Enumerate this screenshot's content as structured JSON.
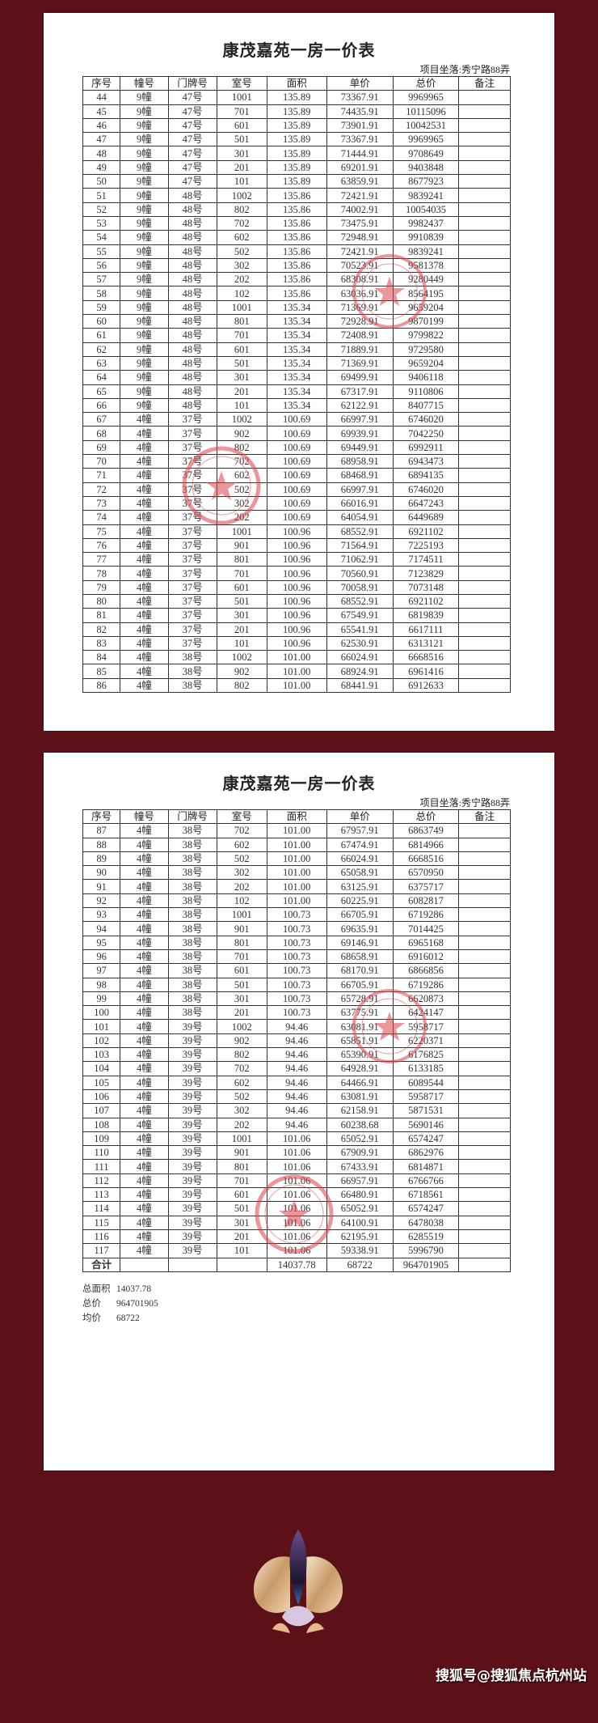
{
  "document": {
    "title": "康茂嘉苑一房一价表",
    "location": "项目坐落:秀宁路88弄",
    "columns": [
      "序号",
      "幢号",
      "门牌号",
      "室号",
      "面积",
      "单价",
      "总价",
      "备注"
    ],
    "page1_rows": [
      [
        "44",
        "9幢",
        "47号",
        "1001",
        "135.89",
        "73367.91",
        "9969965",
        ""
      ],
      [
        "45",
        "9幢",
        "47号",
        "701",
        "135.89",
        "74435.91",
        "10115096",
        ""
      ],
      [
        "46",
        "9幢",
        "47号",
        "601",
        "135.89",
        "73901.91",
        "10042531",
        ""
      ],
      [
        "47",
        "9幢",
        "47号",
        "501",
        "135.89",
        "73367.91",
        "9969965",
        ""
      ],
      [
        "48",
        "9幢",
        "47号",
        "301",
        "135.89",
        "71444.91",
        "9708649",
        ""
      ],
      [
        "49",
        "9幢",
        "47号",
        "201",
        "135.89",
        "69201.91",
        "9403848",
        ""
      ],
      [
        "50",
        "9幢",
        "47号",
        "101",
        "135.89",
        "63859.91",
        "8677923",
        ""
      ],
      [
        "51",
        "9幢",
        "48号",
        "1002",
        "135.86",
        "72421.91",
        "9839241",
        ""
      ],
      [
        "52",
        "9幢",
        "48号",
        "802",
        "135.86",
        "74002.91",
        "10054035",
        ""
      ],
      [
        "53",
        "9幢",
        "48号",
        "702",
        "135.86",
        "73475.91",
        "9982437",
        ""
      ],
      [
        "54",
        "9幢",
        "48号",
        "602",
        "135.86",
        "72948.91",
        "9910839",
        ""
      ],
      [
        "55",
        "9幢",
        "48号",
        "502",
        "135.86",
        "72421.91",
        "9839241",
        ""
      ],
      [
        "56",
        "9幢",
        "48号",
        "302",
        "135.86",
        "70523.91",
        "9581378",
        ""
      ],
      [
        "57",
        "9幢",
        "48号",
        "202",
        "135.86",
        "68308.91",
        "9280449",
        ""
      ],
      [
        "58",
        "9幢",
        "48号",
        "102",
        "135.86",
        "63036.91",
        "8564195",
        ""
      ],
      [
        "59",
        "9幢",
        "48号",
        "1001",
        "135.34",
        "71369.91",
        "9659204",
        ""
      ],
      [
        "60",
        "9幢",
        "48号",
        "801",
        "135.34",
        "72928.91",
        "9870199",
        ""
      ],
      [
        "61",
        "9幢",
        "48号",
        "701",
        "135.34",
        "72408.91",
        "9799822",
        ""
      ],
      [
        "62",
        "9幢",
        "48号",
        "601",
        "135.34",
        "71889.91",
        "9729580",
        ""
      ],
      [
        "63",
        "9幢",
        "48号",
        "501",
        "135.34",
        "71369.91",
        "9659204",
        ""
      ],
      [
        "64",
        "9幢",
        "48号",
        "301",
        "135.34",
        "69499.91",
        "9406118",
        ""
      ],
      [
        "65",
        "9幢",
        "48号",
        "201",
        "135.34",
        "67317.91",
        "9110806",
        ""
      ],
      [
        "66",
        "9幢",
        "48号",
        "101",
        "135.34",
        "62122.91",
        "8407715",
        ""
      ],
      [
        "67",
        "4幢",
        "37号",
        "1002",
        "100.69",
        "66997.91",
        "6746020",
        ""
      ],
      [
        "68",
        "4幢",
        "37号",
        "902",
        "100.69",
        "69939.91",
        "7042250",
        ""
      ],
      [
        "69",
        "4幢",
        "37号",
        "802",
        "100.69",
        "69449.91",
        "6992911",
        ""
      ],
      [
        "70",
        "4幢",
        "37号",
        "702",
        "100.69",
        "68958.91",
        "6943473",
        ""
      ],
      [
        "71",
        "4幢",
        "37号",
        "602",
        "100.69",
        "68468.91",
        "6894135",
        ""
      ],
      [
        "72",
        "4幢",
        "37号",
        "502",
        "100.69",
        "66997.91",
        "6746020",
        ""
      ],
      [
        "73",
        "4幢",
        "37号",
        "302",
        "100.69",
        "66016.91",
        "6647243",
        ""
      ],
      [
        "74",
        "4幢",
        "37号",
        "202",
        "100.69",
        "64054.91",
        "6449689",
        ""
      ],
      [
        "75",
        "4幢",
        "37号",
        "1001",
        "100.96",
        "68552.91",
        "6921102",
        ""
      ],
      [
        "76",
        "4幢",
        "37号",
        "901",
        "100.96",
        "71564.91",
        "7225193",
        ""
      ],
      [
        "77",
        "4幢",
        "37号",
        "801",
        "100.96",
        "71062.91",
        "7174511",
        ""
      ],
      [
        "78",
        "4幢",
        "37号",
        "701",
        "100.96",
        "70560.91",
        "7123829",
        ""
      ],
      [
        "79",
        "4幢",
        "37号",
        "601",
        "100.96",
        "70058.91",
        "7073148",
        ""
      ],
      [
        "80",
        "4幢",
        "37号",
        "501",
        "100.96",
        "68552.91",
        "6921102",
        ""
      ],
      [
        "81",
        "4幢",
        "37号",
        "301",
        "100.96",
        "67549.91",
        "6819839",
        ""
      ],
      [
        "82",
        "4幢",
        "37号",
        "201",
        "100.96",
        "65541.91",
        "6617111",
        ""
      ],
      [
        "83",
        "4幢",
        "37号",
        "101",
        "100.96",
        "62530.91",
        "6313121",
        ""
      ],
      [
        "84",
        "4幢",
        "38号",
        "1002",
        "101.00",
        "66024.91",
        "6668516",
        ""
      ],
      [
        "85",
        "4幢",
        "38号",
        "902",
        "101.00",
        "68924.91",
        "6961416",
        ""
      ],
      [
        "86",
        "4幢",
        "38号",
        "802",
        "101.00",
        "68441.91",
        "6912633",
        ""
      ]
    ],
    "page2_rows": [
      [
        "87",
        "4幢",
        "38号",
        "702",
        "101.00",
        "67957.91",
        "6863749",
        ""
      ],
      [
        "88",
        "4幢",
        "38号",
        "602",
        "101.00",
        "67474.91",
        "6814966",
        ""
      ],
      [
        "89",
        "4幢",
        "38号",
        "502",
        "101.00",
        "66024.91",
        "6668516",
        ""
      ],
      [
        "90",
        "4幢",
        "38号",
        "302",
        "101.00",
        "65058.91",
        "6570950",
        ""
      ],
      [
        "91",
        "4幢",
        "38号",
        "202",
        "101.00",
        "63125.91",
        "6375717",
        ""
      ],
      [
        "92",
        "4幢",
        "38号",
        "102",
        "101.00",
        "60225.91",
        "6082817",
        ""
      ],
      [
        "93",
        "4幢",
        "38号",
        "1001",
        "100.73",
        "66705.91",
        "6719286",
        ""
      ],
      [
        "94",
        "4幢",
        "38号",
        "901",
        "100.73",
        "69635.91",
        "7014425",
        ""
      ],
      [
        "95",
        "4幢",
        "38号",
        "801",
        "100.73",
        "69146.91",
        "6965168",
        ""
      ],
      [
        "96",
        "4幢",
        "38号",
        "701",
        "100.73",
        "68658.91",
        "6916012",
        ""
      ],
      [
        "97",
        "4幢",
        "38号",
        "601",
        "100.73",
        "68170.91",
        "6866856",
        ""
      ],
      [
        "98",
        "4幢",
        "38号",
        "501",
        "100.73",
        "66705.91",
        "6719286",
        ""
      ],
      [
        "99",
        "4幢",
        "38号",
        "301",
        "100.73",
        "65728.91",
        "6620873",
        ""
      ],
      [
        "100",
        "4幢",
        "38号",
        "201",
        "100.73",
        "63775.91",
        "6424147",
        ""
      ],
      [
        "101",
        "4幢",
        "39号",
        "1002",
        "94.46",
        "63081.91",
        "5958717",
        ""
      ],
      [
        "102",
        "4幢",
        "39号",
        "902",
        "94.46",
        "65851.91",
        "6220371",
        ""
      ],
      [
        "103",
        "4幢",
        "39号",
        "802",
        "94.46",
        "65390.91",
        "6176825",
        ""
      ],
      [
        "104",
        "4幢",
        "39号",
        "702",
        "94.46",
        "64928.91",
        "6133185",
        ""
      ],
      [
        "105",
        "4幢",
        "39号",
        "602",
        "94.46",
        "64466.91",
        "6089544",
        ""
      ],
      [
        "106",
        "4幢",
        "39号",
        "502",
        "94.46",
        "63081.91",
        "5958717",
        ""
      ],
      [
        "107",
        "4幢",
        "39号",
        "302",
        "94.46",
        "62158.91",
        "5871531",
        ""
      ],
      [
        "108",
        "4幢",
        "39号",
        "202",
        "94.46",
        "60238.68",
        "5690146",
        ""
      ],
      [
        "109",
        "4幢",
        "39号",
        "1001",
        "101.06",
        "65052.91",
        "6574247",
        ""
      ],
      [
        "110",
        "4幢",
        "39号",
        "901",
        "101.06",
        "67909.91",
        "6862976",
        ""
      ],
      [
        "111",
        "4幢",
        "39号",
        "801",
        "101.06",
        "67433.91",
        "6814871",
        ""
      ],
      [
        "112",
        "4幢",
        "39号",
        "701",
        "101.06",
        "66957.91",
        "6766766",
        ""
      ],
      [
        "113",
        "4幢",
        "39号",
        "601",
        "101.06",
        "66480.91",
        "6718561",
        ""
      ],
      [
        "114",
        "4幢",
        "39号",
        "501",
        "101.06",
        "65052.91",
        "6574247",
        ""
      ],
      [
        "115",
        "4幢",
        "39号",
        "301",
        "101.06",
        "64100.91",
        "6478038",
        ""
      ],
      [
        "116",
        "4幢",
        "39号",
        "201",
        "101.06",
        "62195.91",
        "6285519",
        ""
      ],
      [
        "117",
        "4幢",
        "39号",
        "101",
        "101.06",
        "59338.91",
        "5996790",
        ""
      ]
    ],
    "total_row": [
      "合计",
      "",
      "",
      "",
      "14037.78",
      "68722",
      "964701905",
      ""
    ],
    "summary": [
      {
        "label": "总面积",
        "value": "14037.78"
      },
      {
        "label": "总价",
        "value": "964701905"
      },
      {
        "label": "均价",
        "value": "68722"
      }
    ]
  },
  "watermark": "搜狐号@搜狐焦点杭州站",
  "colors": {
    "background": "#5c1119",
    "stamp": "#d9414a"
  }
}
